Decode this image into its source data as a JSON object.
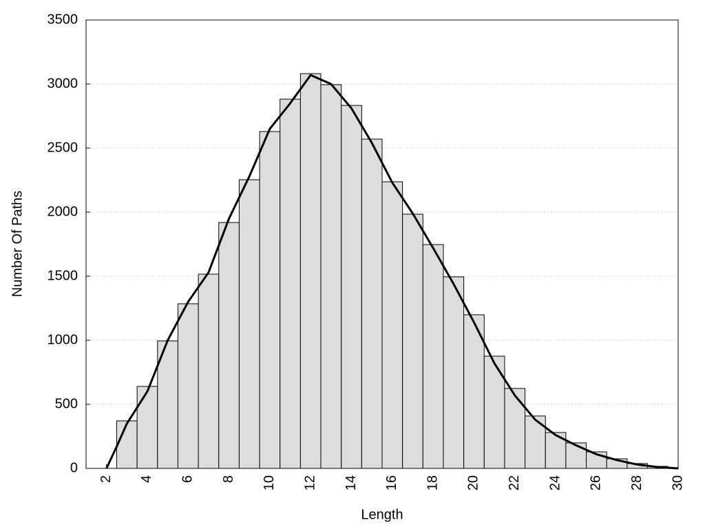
{
  "chart_data": {
    "type": "histogram",
    "xlabel": "Length",
    "ylabel": "Number Of Paths",
    "bins": [
      2.5,
      3.5,
      4.5,
      5.5,
      6.5,
      7.5,
      8.5,
      9.5,
      10.5,
      11.5,
      12.5,
      13.5,
      14.5,
      15.5,
      16.5,
      17.5,
      18.5,
      19.5,
      20.5,
      21.5,
      22.5,
      23.5,
      24.5,
      25.5,
      26.5,
      27.5,
      28.5,
      29.5
    ],
    "values": [
      371,
      640,
      995,
      1285,
      1516,
      1919,
      2253,
      2629,
      2882,
      3081,
      2995,
      2833,
      2570,
      2237,
      1984,
      1747,
      1495,
      1199,
      876,
      624,
      409,
      280,
      199,
      129,
      75,
      38,
      16
    ],
    "color": "#dddddd",
    "edgecolor": "#000000",
    "curve": {
      "x": [
        2,
        2.5,
        3,
        4,
        5,
        6,
        7,
        8,
        9,
        10,
        11,
        12,
        13,
        14,
        15,
        16,
        17,
        18,
        19,
        20,
        21,
        22,
        23,
        24,
        25,
        26,
        27,
        28,
        29,
        30
      ],
      "values": [
        0,
        170,
        350,
        600,
        1000,
        1300,
        1530,
        1950,
        2280,
        2650,
        2850,
        3070,
        3000,
        2810,
        2540,
        2230,
        1990,
        1720,
        1440,
        1140,
        820,
        570,
        380,
        260,
        180,
        110,
        65,
        30,
        10,
        0
      ],
      "color": "#000000"
    },
    "xlim": [
      1,
      30
    ],
    "ylim": [
      0,
      3500
    ],
    "xticks": [
      2,
      4,
      6,
      8,
      10,
      12,
      14,
      16,
      18,
      20,
      22,
      24,
      26,
      28,
      30
    ],
    "yticks": [
      0,
      500,
      1000,
      1500,
      2000,
      2500,
      3000,
      3500
    ],
    "grid": true
  }
}
